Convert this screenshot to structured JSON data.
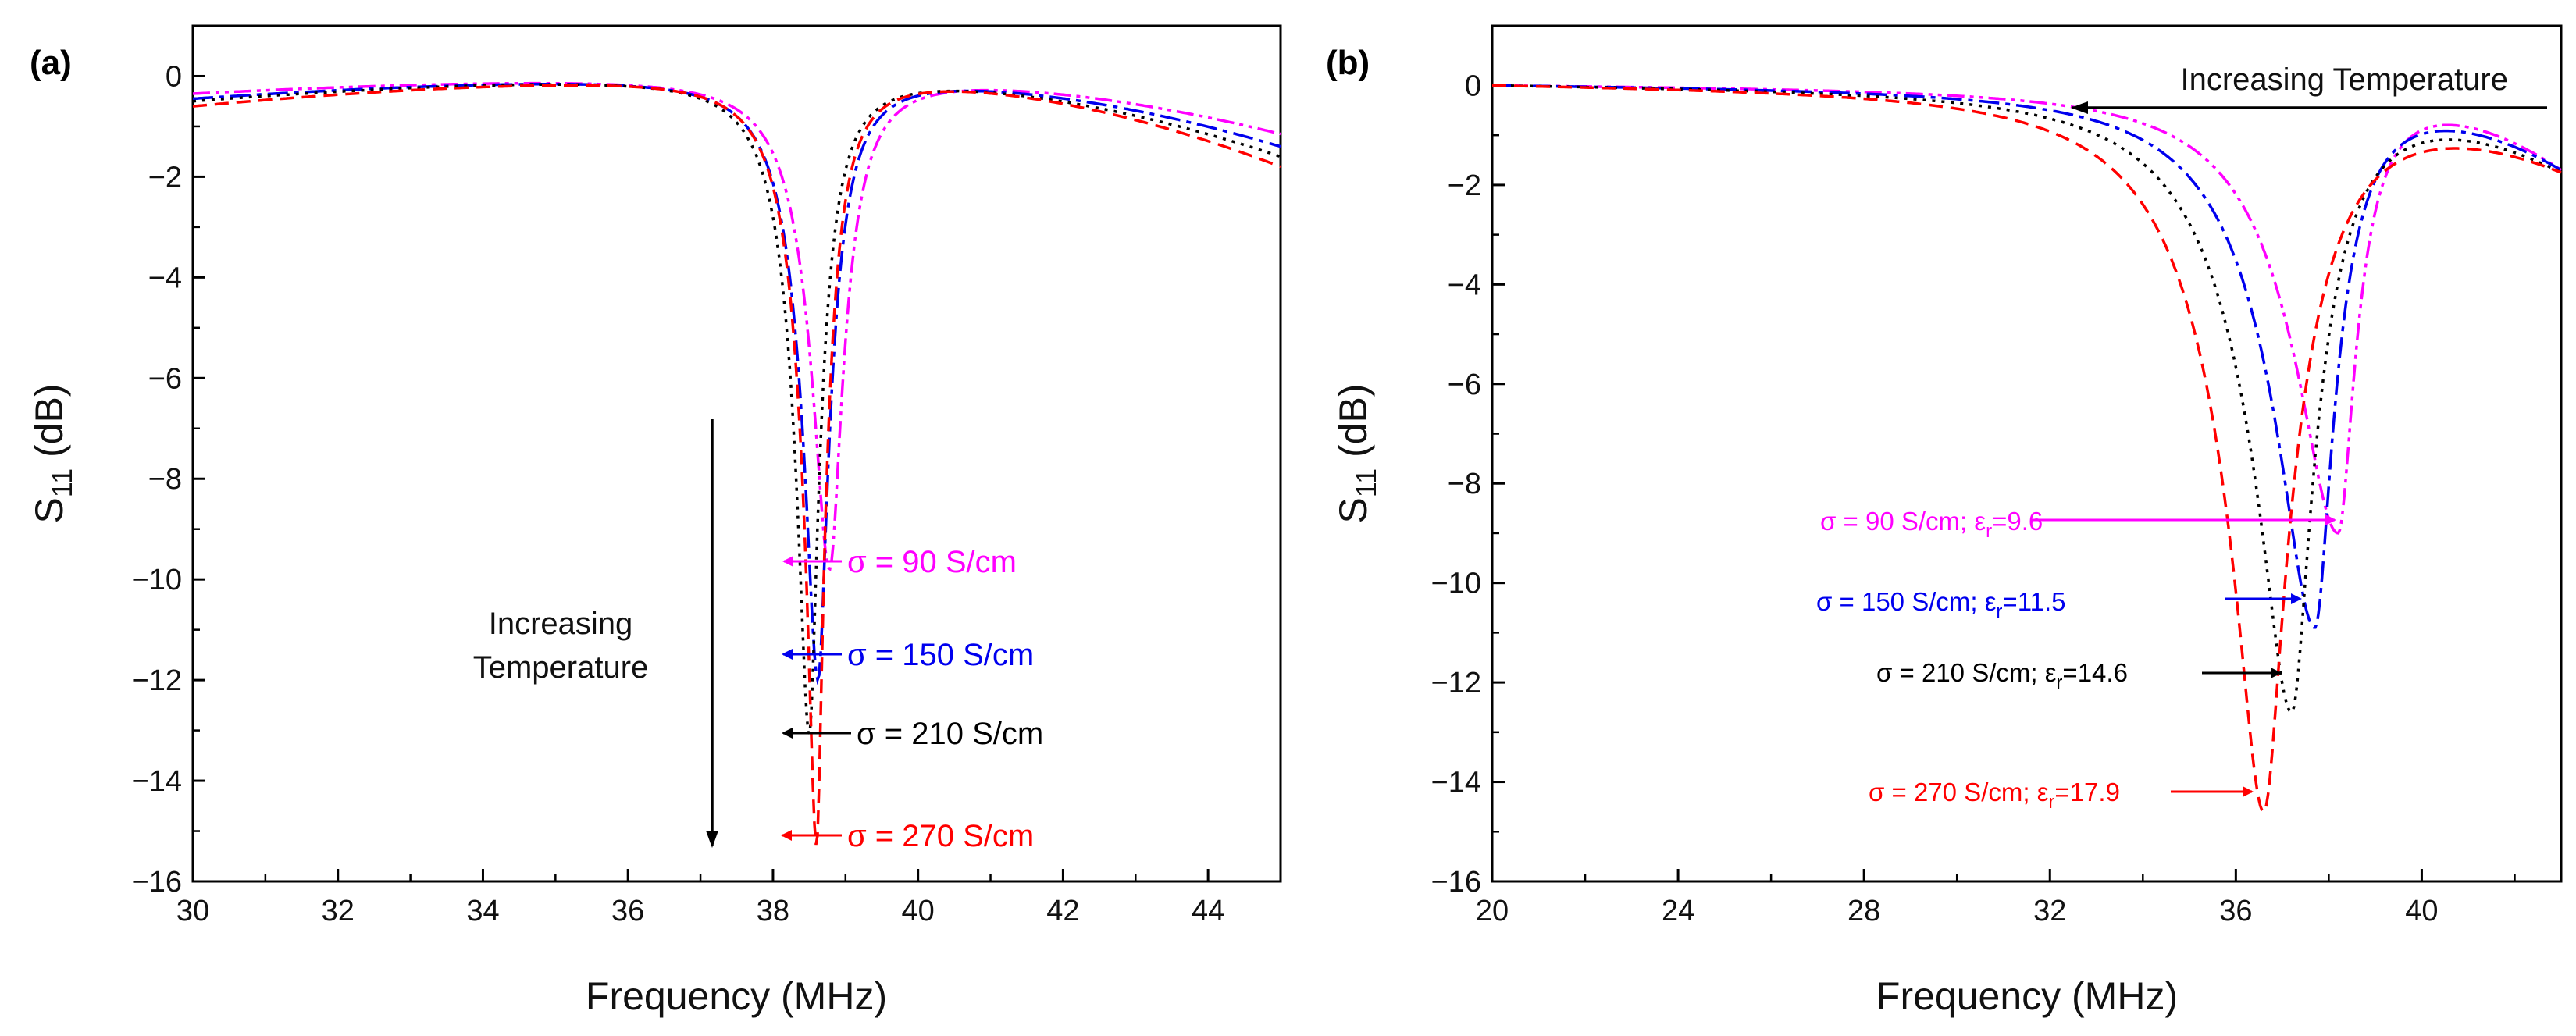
{
  "chart_data": [
    {
      "type": "line",
      "panel_label": "(a)",
      "xlabel": "Frequency (MHz)",
      "ylabel": "S11 (dB)",
      "ylabel_main": "S",
      "ylabel_sub": "11",
      "ylabel_unit": " (dB)",
      "xlim": [
        30,
        45
      ],
      "ylim": [
        -16,
        1
      ],
      "xticks": [
        30,
        32,
        34,
        36,
        38,
        40,
        42,
        44
      ],
      "yticks": [
        0,
        -2,
        -4,
        -6,
        -8,
        -10,
        -12,
        -14,
        -16
      ],
      "annotation": [
        "Increasing",
        "Temperature"
      ],
      "series": [
        {
          "name": "σ = 90 S/cm",
          "color": "#ff00ff",
          "dash": "22 7 5 7 5 7",
          "f0": 38.78,
          "min": -9.8,
          "gl": 0.55,
          "gr": 0.42,
          "x_start": -0.35,
          "x_end": -1.15
        },
        {
          "name": "σ = 150 S/cm",
          "color": "#0000ee",
          "dash": "26 8 6 8",
          "f0": 38.62,
          "min": -12.0,
          "gl": 0.52,
          "gr": 0.4,
          "x_start": -0.45,
          "x_end": -1.4
        },
        {
          "name": "σ = 210 S/cm",
          "color": "#000000",
          "dash": "4 8",
          "f0": 38.5,
          "min": -13.1,
          "gl": 0.5,
          "gr": 0.38,
          "x_start": -0.5,
          "x_end": -1.6
        },
        {
          "name": "σ = 270 S/cm",
          "color": "#ff0000",
          "dash": "18 10",
          "f0": 38.6,
          "min": -15.3,
          "gl": 0.5,
          "gr": 0.36,
          "x_start": -0.6,
          "x_end": -1.8
        }
      ]
    },
    {
      "type": "line",
      "panel_label": "(b)",
      "xlabel": "Frequency (MHz)",
      "ylabel": "S11 (dB)",
      "ylabel_main": "S",
      "ylabel_sub": "11",
      "ylabel_unit": " (dB)",
      "xlim": [
        20,
        43
      ],
      "ylim": [
        -16,
        1.2
      ],
      "xticks": [
        20,
        24,
        28,
        32,
        36,
        40
      ],
      "yticks": [
        0,
        -2,
        -4,
        -6,
        -8,
        -10,
        -12,
        -14,
        -16
      ],
      "annotation": [
        "Increasing Temperature"
      ],
      "series": [
        {
          "name": "σ = 90 S/cm; ε",
          "sub": "r",
          "value": "=9.6",
          "color": "#ff00ff",
          "dash": "22 7 5 7 5 7",
          "f0": 38.2,
          "min": -9.0,
          "gl": 2.0,
          "gr": 0.8,
          "x_start": 0.0,
          "x_end": -1.7
        },
        {
          "name": "σ = 150 S/cm; ε",
          "sub": "r",
          "value": "=11.5",
          "color": "#0000ee",
          "dash": "26 8 6 8",
          "f0": 37.7,
          "min": -10.9,
          "gl": 2.1,
          "gr": 1.0,
          "x_start": 0.0,
          "x_end": -1.7
        },
        {
          "name": "σ = 210 S/cm; ε",
          "sub": "r",
          "value": "=14.6",
          "color": "#000000",
          "dash": "4 8",
          "f0": 37.2,
          "min": -12.6,
          "gl": 2.2,
          "gr": 1.3,
          "x_start": 0.0,
          "x_end": -1.75
        },
        {
          "name": "σ = 270 S/cm; ε",
          "sub": "r",
          "value": "=17.9",
          "color": "#ff0000",
          "dash": "18 10",
          "f0": 36.6,
          "min": -14.6,
          "gl": 2.3,
          "gr": 1.7,
          "x_start": 0.0,
          "x_end": -1.75
        }
      ]
    }
  ]
}
